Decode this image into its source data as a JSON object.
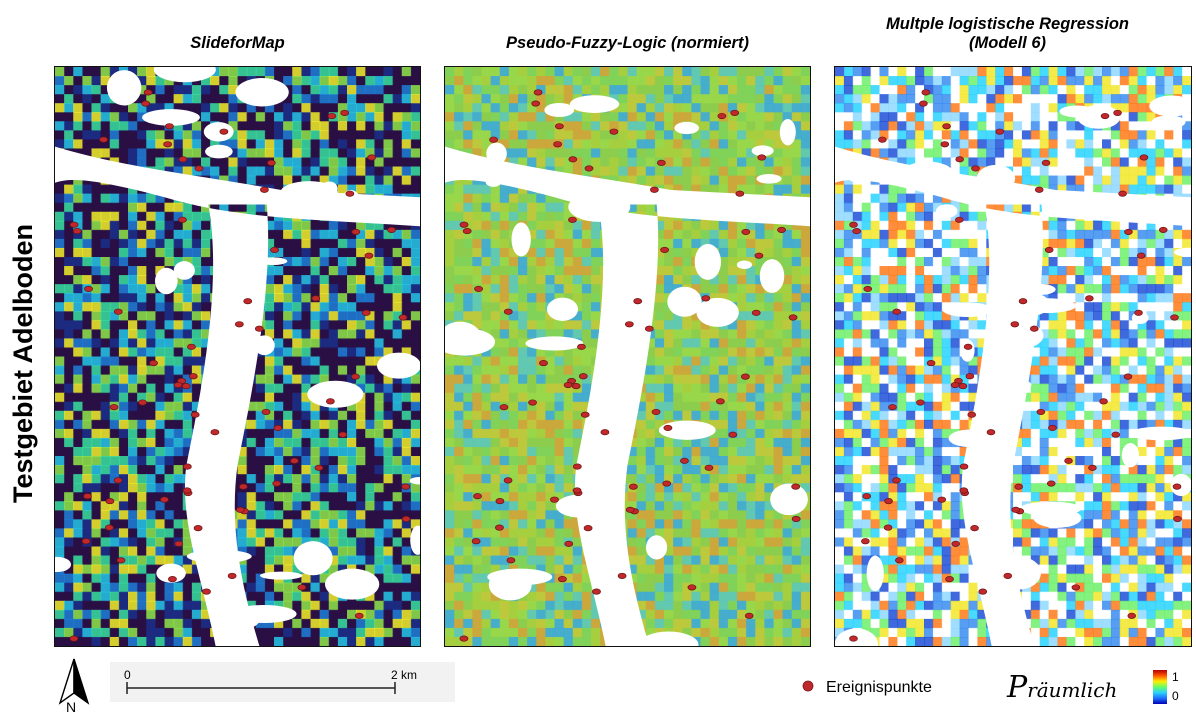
{
  "side_label": "Testgebiet Adelboden",
  "panels": [
    {
      "id": "sfm",
      "title_lines": [
        "SlideforMap"
      ],
      "style": "sfm"
    },
    {
      "id": "pfl",
      "title_lines": [
        "Pseudo-Fuzzy-Logic (normiert)"
      ],
      "style": "pfl"
    },
    {
      "id": "mlr",
      "title_lines": [
        "Multple logistische Regression",
        "(Modell 6)"
      ],
      "style": "mlr"
    }
  ],
  "north_arrow": {
    "label": "N",
    "icon": "north-arrow-icon"
  },
  "scale_bar": {
    "start_label": "0",
    "end_label": "2 km"
  },
  "legend": {
    "points_label": "Ereignispunkte",
    "point_color": "#c0282b",
    "probability_label_main": "P",
    "probability_label_sub": "räumlich",
    "colorbar_max": "1",
    "colorbar_min": "0",
    "colorbar_colors": [
      "#0000b4",
      "#1e6eff",
      "#28d2ff",
      "#64ff64",
      "#ffee00",
      "#ff5500",
      "#b40000"
    ]
  }
}
